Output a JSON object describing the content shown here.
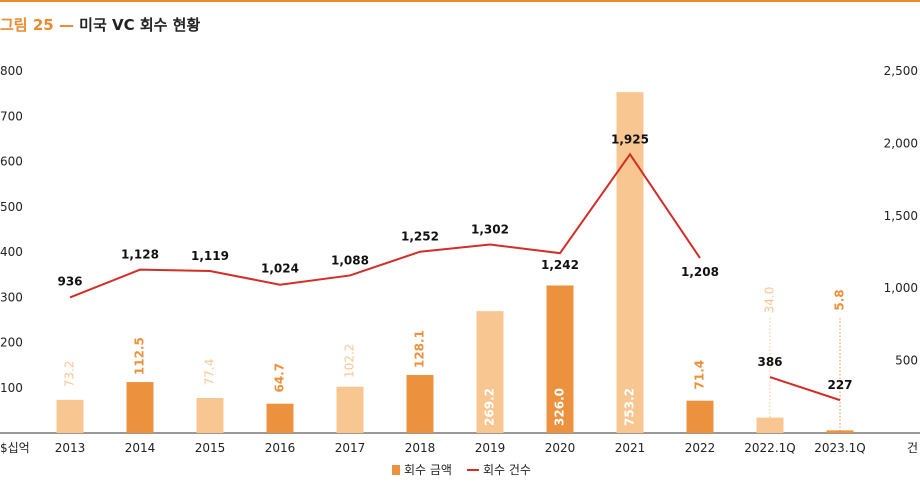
{
  "figure": {
    "number": "그림 25",
    "separator": "—",
    "title": "미국 VC 회수 현황"
  },
  "colors": {
    "accent": "#e98a2e",
    "bar_dark": "#ec913d",
    "bar_light": "#f7c691",
    "line": "#d42d27",
    "axis": "#333333"
  },
  "chart_data": {
    "type": "bar",
    "categories": [
      "2013",
      "2014",
      "2015",
      "2016",
      "2017",
      "2018",
      "2019",
      "2020",
      "2021",
      "2022",
      "2022.1Q",
      "2023.1Q"
    ],
    "series": [
      {
        "name": "회수 금액",
        "type": "bar",
        "axis": "left",
        "values": [
          73.2,
          112.5,
          77.4,
          64.7,
          102.2,
          128.1,
          269.2,
          326.0,
          753.2,
          71.4,
          34.0,
          5.8
        ],
        "labels": [
          "73.2",
          "112.5",
          "77.4",
          "64.7",
          "102.2",
          "128.1",
          "269.2",
          "326.0",
          "753.2",
          "71.4",
          "34.0",
          "5.8"
        ],
        "shade": [
          "light",
          "dark",
          "light",
          "dark",
          "light",
          "dark",
          "light",
          "dark",
          "light",
          "dark",
          "light",
          "dark"
        ]
      },
      {
        "name": "회수 건수",
        "type": "line",
        "axis": "right",
        "values": [
          936,
          1128,
          1119,
          1024,
          1088,
          1252,
          1302,
          1242,
          1925,
          1208,
          386,
          227
        ],
        "labels": [
          "936",
          "1,128",
          "1,119",
          "1,024",
          "1,088",
          "1,252",
          "1,302",
          "1,242",
          "1,925",
          "1,208",
          "386",
          "227"
        ],
        "segments": [
          [
            0,
            9
          ],
          [
            10,
            11
          ]
        ]
      }
    ],
    "left_axis": {
      "unit": "$십억",
      "ticks": [
        "800",
        "700",
        "600",
        "500",
        "400",
        "300",
        "200",
        "100"
      ],
      "tick_values": [
        800,
        700,
        600,
        500,
        400,
        300,
        200,
        100
      ],
      "ylim": [
        0,
        800
      ]
    },
    "right_axis": {
      "unit": "건",
      "ticks": [
        "2,500",
        "2,000",
        "1,500",
        "1,000",
        "500"
      ],
      "tick_values": [
        2500,
        2000,
        1500,
        1000,
        500
      ],
      "ylim": [
        0,
        2500
      ]
    },
    "legend": {
      "position": "bottom-center",
      "items": [
        "회수 금액",
        "회수 건수"
      ]
    },
    "grid": false
  }
}
